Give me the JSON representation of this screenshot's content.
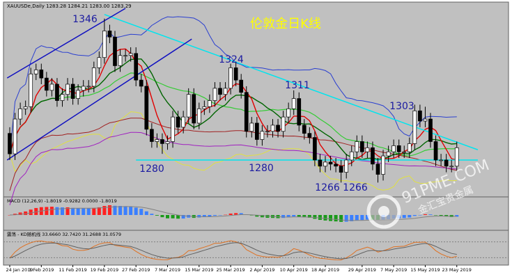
{
  "chart_data": {
    "type": "candlestick",
    "title": "伦敦金日K线",
    "header": "XAUUSDe,Daily 1283.28 1284.21 1283.00 1283.29",
    "macd_label": "MACD (12,26,9) -1.8019 -0.9282 0.0000 -1.8019",
    "kd_label": "震荡 - KD随机线 33.6660 32.7420 31.2688 31.0579",
    "watermark": [
      "91PME.COM",
      "金汇宝贵金属"
    ],
    "annotations": [
      "1346",
      "1324",
      "1311",
      "1303",
      "1280",
      "1280",
      "1266",
      "1266"
    ],
    "categories": [
      "24 Jan 2019",
      null,
      null,
      null,
      null,
      null,
      "1 Feb 2019",
      null,
      null,
      null,
      null,
      null,
      "11 Feb 2019",
      null,
      null,
      null,
      null,
      null,
      "19 Feb 2019",
      null,
      null,
      null,
      null,
      null,
      "27 Feb 2019",
      null,
      null,
      null,
      null,
      null,
      "7 Mar 2019",
      null,
      null,
      null,
      null,
      null,
      "15 Mar 2019",
      null,
      null,
      null,
      null,
      null,
      "25 Mar 2019",
      null,
      null,
      null,
      null,
      null,
      "2 Apr 2019",
      null,
      null,
      null,
      null,
      null,
      "10 Apr 2019",
      null,
      null,
      null,
      null,
      null,
      "18 Apr 2019",
      null,
      null,
      null,
      null,
      null,
      null,
      "29 Apr 2019",
      null,
      null,
      null,
      null,
      null,
      "7 May 2019",
      null,
      null,
      null,
      null,
      null,
      "15 May 2019",
      null,
      null,
      null,
      null,
      null,
      "23 May 2019"
    ],
    "open": [
      1290,
      1280,
      1297,
      1302,
      1303,
      1319,
      1321,
      1317,
      1311,
      1314,
      1306,
      1309,
      1314,
      1307,
      1311,
      1313,
      1313,
      1322,
      1327,
      1340,
      1337,
      1323,
      1328,
      1328,
      1329,
      1316,
      1313,
      1292,
      1286,
      1287,
      1285,
      1286,
      1298,
      1293,
      1298,
      1309,
      1295,
      1302,
      1303,
      1306,
      1312,
      1309,
      1312,
      1322,
      1316,
      1310,
      1291,
      1295,
      1287,
      1291,
      1291,
      1294,
      1291,
      1298,
      1302,
      1307,
      1294,
      1290,
      1288,
      1277,
      1274,
      1276,
      1275,
      1274,
      1271,
      1277,
      1281,
      1286,
      1281,
      1283,
      1275,
      1270,
      1279,
      1281,
      1284,
      1281,
      1281,
      1285,
      1301,
      1296,
      1297,
      1286,
      1277,
      1277,
      1274,
      1274
    ],
    "high": [
      1293,
      1300,
      1305,
      1306,
      1322,
      1324,
      1324,
      1320,
      1317,
      1317,
      1312,
      1317,
      1317,
      1314,
      1316,
      1316,
      1325,
      1330,
      1346,
      1343,
      1340,
      1331,
      1331,
      1332,
      1332,
      1319,
      1316,
      1295,
      1290,
      1290,
      1289,
      1301,
      1301,
      1301,
      1312,
      1312,
      1305,
      1306,
      1309,
      1315,
      1315,
      1315,
      1324,
      1325,
      1319,
      1313,
      1298,
      1298,
      1294,
      1294,
      1297,
      1297,
      1301,
      1305,
      1311,
      1310,
      1297,
      1293,
      1291,
      1280,
      1279,
      1279,
      1278,
      1277,
      1280,
      1284,
      1289,
      1289,
      1286,
      1286,
      1278,
      1282,
      1284,
      1287,
      1287,
      1284,
      1288,
      1304,
      1304,
      1303,
      1300,
      1289,
      1280,
      1280,
      1277,
      1286
    ],
    "low": [
      1277,
      1277,
      1294,
      1299,
      1300,
      1316,
      1314,
      1308,
      1308,
      1303,
      1303,
      1306,
      1304,
      1304,
      1308,
      1310,
      1310,
      1319,
      1324,
      1334,
      1320,
      1320,
      1325,
      1325,
      1313,
      1310,
      1289,
      1283,
      1283,
      1280,
      1282,
      1283,
      1290,
      1290,
      1295,
      1292,
      1292,
      1299,
      1300,
      1303,
      1306,
      1306,
      1309,
      1313,
      1307,
      1288,
      1288,
      1284,
      1284,
      1288,
      1288,
      1288,
      1288,
      1295,
      1299,
      1291,
      1287,
      1285,
      1274,
      1271,
      1271,
      1272,
      1271,
      1266,
      1268,
      1274,
      1278,
      1278,
      1278,
      1272,
      1266,
      1267,
      1276,
      1278,
      1278,
      1278,
      1278,
      1282,
      1293,
      1293,
      1283,
      1274,
      1274,
      1271,
      1271,
      1271
    ],
    "close": [
      1280,
      1297,
      1302,
      1303,
      1319,
      1321,
      1317,
      1311,
      1314,
      1306,
      1309,
      1314,
      1307,
      1311,
      1313,
      1313,
      1322,
      1327,
      1340,
      1337,
      1323,
      1328,
      1328,
      1329,
      1316,
      1313,
      1292,
      1286,
      1287,
      1285,
      1286,
      1298,
      1293,
      1298,
      1309,
      1295,
      1302,
      1303,
      1306,
      1312,
      1309,
      1312,
      1322,
      1316,
      1310,
      1291,
      1295,
      1287,
      1291,
      1291,
      1294,
      1291,
      1298,
      1302,
      1307,
      1294,
      1290,
      1288,
      1277,
      1274,
      1276,
      1275,
      1274,
      1271,
      1277,
      1281,
      1286,
      1281,
      1283,
      1275,
      1270,
      1279,
      1281,
      1284,
      1281,
      1281,
      1285,
      1301,
      1296,
      1297,
      1286,
      1277,
      1277,
      1274,
      1274,
      1283
    ],
    "ylim": [
      1259,
      1351
    ],
    "trendlines": [
      {
        "color": "#00e5ee",
        "from": [
          18,
          1348
        ],
        "to": [
          89,
          1282
        ]
      },
      {
        "color": "#00e5ee",
        "from": [
          24,
          1277
        ],
        "to": [
          89,
          1277
        ]
      },
      {
        "color": "#1010c0",
        "from": [
          -0.5,
          1317
        ],
        "to": [
          22,
          1351
        ]
      },
      {
        "color": "#1010c0",
        "from": [
          -0.5,
          1277
        ],
        "to": [
          34.6,
          1336
        ]
      }
    ],
    "colors": {
      "up": "#ffffff",
      "down": "#000000",
      "background": "#c0c0c0",
      "ma_fast": "#e00000",
      "ma_mid": "#006400",
      "ma_slow": "#33cc33",
      "band_upper": "#2a3fd0",
      "band_lower": "#e0e040",
      "ma_long1": "#a02020",
      "ma_long2": "#a020c0",
      "title": "#ffff00",
      "annotation": "#1a1aa0"
    }
  }
}
